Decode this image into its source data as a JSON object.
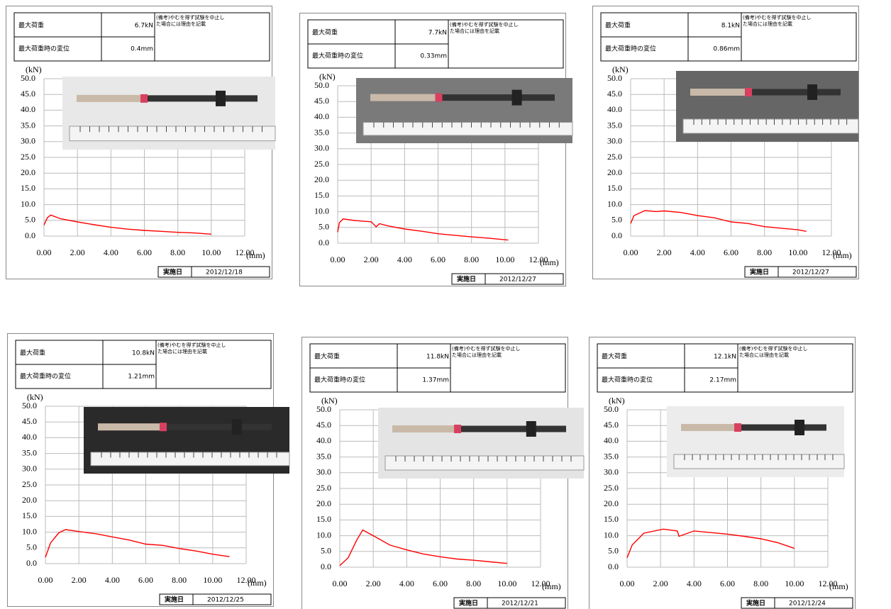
{
  "chart_data": [
    {
      "type": "line",
      "y_label": "(kN)",
      "x_label": "(mm)",
      "table": {
        "max_load_label": "最大荷重",
        "max_load": "6.7kN",
        "disp_label": "最大荷重時の変位",
        "disp": "0.4mm",
        "remark": [
          "(備考)やむを得ず試験を中止し",
          "た場合には理由を記載"
        ]
      },
      "date_label": "実施日",
      "date": "2012/12/18",
      "xlim": [
        0,
        12
      ],
      "ylim": [
        0,
        50
      ],
      "grid": true,
      "xticks": [
        {
          "value": 0,
          "label": "0.00"
        },
        {
          "value": 2,
          "label": "2.00"
        },
        {
          "value": 4,
          "label": "4.00"
        },
        {
          "value": 6,
          "label": "6.00"
        },
        {
          "value": 8,
          "label": "8.00"
        },
        {
          "value": 10,
          "label": "10.00"
        },
        {
          "value": 12,
          "label": "12.00"
        }
      ],
      "yticks": [
        {
          "value": 0,
          "label": "0.0"
        },
        {
          "value": 5,
          "label": "5.0"
        },
        {
          "value": 10,
          "label": "10.0"
        },
        {
          "value": 15,
          "label": "15.0"
        },
        {
          "value": 20,
          "label": "20.0"
        },
        {
          "value": 25,
          "label": "25.0"
        },
        {
          "value": 30,
          "label": "30.0"
        },
        {
          "value": 35,
          "label": "35.0"
        },
        {
          "value": 40,
          "label": "40.0"
        },
        {
          "value": 45,
          "label": "45.0"
        },
        {
          "value": 50,
          "label": "50.0"
        }
      ],
      "series": [
        {
          "color": "#ff0000",
          "x": [
            0,
            0.2,
            0.4,
            1,
            2,
            3,
            4,
            5,
            6,
            7,
            8,
            9,
            10
          ],
          "values": [
            3.5,
            5.8,
            6.7,
            5.5,
            4.5,
            3.6,
            2.8,
            2.2,
            1.8,
            1.5,
            1.2,
            1.0,
            0.6
          ]
        }
      ]
    },
    {
      "type": "line",
      "y_label": "(kN)",
      "x_label": "(mm)",
      "table": {
        "max_load_label": "最大荷重",
        "max_load": "7.7kN",
        "disp_label": "最大荷重時の変位",
        "disp": "0.33mm",
        "remark": [
          "(備考)やむを得ず試験を中止し",
          "た場合には理由を記載"
        ]
      },
      "date_label": "実施日",
      "date": "2012/12/27",
      "xlim": [
        0,
        12
      ],
      "ylim": [
        0,
        50
      ],
      "grid": true,
      "xticks": [
        {
          "value": 0,
          "label": "0.00"
        },
        {
          "value": 2,
          "label": "2.00"
        },
        {
          "value": 4,
          "label": "4.00"
        },
        {
          "value": 6,
          "label": "6.00"
        },
        {
          "value": 8,
          "label": "8.00"
        },
        {
          "value": 10,
          "label": "10.00"
        },
        {
          "value": 12,
          "label": "12.00"
        }
      ],
      "yticks": [
        {
          "value": 0,
          "label": "0.0"
        },
        {
          "value": 5,
          "label": "5.0"
        },
        {
          "value": 10,
          "label": "10.0"
        },
        {
          "value": 15,
          "label": "15.0"
        },
        {
          "value": 20,
          "label": "20.0"
        },
        {
          "value": 25,
          "label": "25.0"
        },
        {
          "value": 30,
          "label": "30.0"
        },
        {
          "value": 35,
          "label": "35.0"
        },
        {
          "value": 40,
          "label": "40.0"
        },
        {
          "value": 45,
          "label": "45.0"
        },
        {
          "value": 50,
          "label": "50.0"
        }
      ],
      "series": [
        {
          "color": "#ff0000",
          "x": [
            0,
            0.1,
            0.33,
            1,
            2,
            2.3,
            2.5,
            3,
            4,
            5,
            6,
            7,
            8,
            9,
            10.2
          ],
          "values": [
            3.5,
            6.5,
            7.7,
            7.2,
            6.8,
            5.2,
            6.2,
            5.5,
            4.5,
            3.8,
            3.0,
            2.5,
            2.0,
            1.6,
            1.0
          ]
        }
      ]
    },
    {
      "type": "line",
      "y_label": "(kN)",
      "x_label": "(mm)",
      "table": {
        "max_load_label": "最大荷重",
        "max_load": "8.1kN",
        "disp_label": "最大荷重時の変位",
        "disp": "0.86mm",
        "remark": [
          "(備考)やむを得ず試験を中止し",
          "た場合には理由を記載"
        ]
      },
      "date_label": "実施日",
      "date": "2012/12/27",
      "xlim": [
        0,
        12
      ],
      "ylim": [
        0,
        50
      ],
      "grid": true,
      "xticks": [
        {
          "value": 0,
          "label": "0.00"
        },
        {
          "value": 2,
          "label": "2.00"
        },
        {
          "value": 4,
          "label": "4.00"
        },
        {
          "value": 6,
          "label": "6.00"
        },
        {
          "value": 8,
          "label": "8.00"
        },
        {
          "value": 10,
          "label": "10.00"
        },
        {
          "value": 12,
          "label": "12.00"
        }
      ],
      "yticks": [
        {
          "value": 0,
          "label": "0.0"
        },
        {
          "value": 5,
          "label": "5.0"
        },
        {
          "value": 10,
          "label": "10.0"
        },
        {
          "value": 15,
          "label": "15.0"
        },
        {
          "value": 20,
          "label": "20.0"
        },
        {
          "value": 25,
          "label": "25.0"
        },
        {
          "value": 30,
          "label": "30.0"
        },
        {
          "value": 35,
          "label": "35.0"
        },
        {
          "value": 40,
          "label": "40.0"
        },
        {
          "value": 45,
          "label": "45.0"
        },
        {
          "value": 50,
          "label": "50.0"
        }
      ],
      "series": [
        {
          "color": "#ff0000",
          "x": [
            0,
            0.2,
            0.86,
            1.5,
            2,
            3,
            4,
            5,
            6,
            7,
            8,
            9,
            10,
            10.5
          ],
          "values": [
            4,
            6.5,
            8.1,
            7.8,
            8,
            7.5,
            6.5,
            5.8,
            4.5,
            4,
            3,
            2.5,
            2,
            1.5
          ]
        }
      ]
    },
    {
      "type": "line",
      "y_label": "(kN)",
      "x_label": "(mm)",
      "table": {
        "max_load_label": "最大荷重",
        "max_load": "10.8kN",
        "disp_label": "最大荷重時の変位",
        "disp": "1.21mm",
        "remark": [
          "(備考)やむを得ず試験を中止し",
          "た場合には理由を記載"
        ]
      },
      "date_label": "実施日",
      "date": "2012/12/25",
      "xlim": [
        0,
        12
      ],
      "ylim": [
        0,
        50
      ],
      "grid": true,
      "xticks": [
        {
          "value": 0,
          "label": "0.00"
        },
        {
          "value": 2,
          "label": "2.00"
        },
        {
          "value": 4,
          "label": "4.00"
        },
        {
          "value": 6,
          "label": "6.00"
        },
        {
          "value": 8,
          "label": "8.00"
        },
        {
          "value": 10,
          "label": "10.00"
        },
        {
          "value": 12,
          "label": "12.00"
        }
      ],
      "yticks": [
        {
          "value": 0,
          "label": "0.0"
        },
        {
          "value": 5,
          "label": "5.0"
        },
        {
          "value": 10,
          "label": "10.0"
        },
        {
          "value": 15,
          "label": "15.0"
        },
        {
          "value": 20,
          "label": "20.0"
        },
        {
          "value": 25,
          "label": "25.0"
        },
        {
          "value": 30,
          "label": "30.0"
        },
        {
          "value": 35,
          "label": "35.0"
        },
        {
          "value": 40,
          "label": "40.0"
        },
        {
          "value": 45,
          "label": "45.0"
        },
        {
          "value": 50,
          "label": "50.0"
        }
      ],
      "series": [
        {
          "color": "#ff0000",
          "x": [
            0,
            0.3,
            0.8,
            1.21,
            2,
            3,
            4,
            5,
            6,
            7,
            8,
            9,
            10,
            11
          ],
          "values": [
            2,
            6.5,
            9.8,
            10.8,
            10.2,
            9.5,
            8.5,
            7.5,
            6.2,
            5.8,
            4.8,
            4,
            3,
            2.2
          ]
        }
      ]
    },
    {
      "type": "line",
      "y_label": "(kN)",
      "x_label": "(mm)",
      "table": {
        "max_load_label": "最大荷重",
        "max_load": "11.8kN",
        "disp_label": "最大荷重時の変位",
        "disp": "1.37mm",
        "remark": [
          "(備考)やむを得ず試験を中止し",
          "た場合には理由を記載"
        ]
      },
      "date_label": "実施日",
      "date": "2012/12/21",
      "xlim": [
        0,
        12
      ],
      "ylim": [
        0,
        50
      ],
      "grid": true,
      "xticks": [
        {
          "value": 0,
          "label": "0.00"
        },
        {
          "value": 2,
          "label": "2.00"
        },
        {
          "value": 4,
          "label": "4.00"
        },
        {
          "value": 6,
          "label": "6.00"
        },
        {
          "value": 8,
          "label": "8.00"
        },
        {
          "value": 10,
          "label": "10.00"
        },
        {
          "value": 12,
          "label": "12.00"
        }
      ],
      "yticks": [
        {
          "value": 0,
          "label": "0.0"
        },
        {
          "value": 5,
          "label": "5.0"
        },
        {
          "value": 10,
          "label": "10.0"
        },
        {
          "value": 15,
          "label": "15.0"
        },
        {
          "value": 20,
          "label": "20.0"
        },
        {
          "value": 25,
          "label": "25.0"
        },
        {
          "value": 30,
          "label": "30.0"
        },
        {
          "value": 35,
          "label": "35.0"
        },
        {
          "value": 40,
          "label": "40.0"
        },
        {
          "value": 45,
          "label": "45.0"
        },
        {
          "value": 50,
          "label": "50.0"
        }
      ],
      "series": [
        {
          "color": "#ff0000",
          "x": [
            0,
            0.5,
            1,
            1.37,
            2,
            3,
            4,
            5,
            6,
            7,
            8,
            9,
            10
          ],
          "values": [
            0.5,
            3,
            8.5,
            11.8,
            10,
            7,
            5.5,
            4.2,
            3.3,
            2.6,
            2.2,
            1.7,
            1.2
          ]
        }
      ]
    },
    {
      "type": "line",
      "y_label": "(kN)",
      "x_label": "(mm)",
      "table": {
        "max_load_label": "最大荷重",
        "max_load": "12.1kN",
        "disp_label": "最大荷重時の変位",
        "disp": "2.17mm",
        "remark": [
          "(備考)やむを得ず試験を中止し",
          "た場合には理由を記載"
        ]
      },
      "date_label": "実施日",
      "date": "2012/12/24",
      "xlim": [
        0,
        12
      ],
      "ylim": [
        0,
        50
      ],
      "grid": true,
      "xticks": [
        {
          "value": 0,
          "label": "0.00"
        },
        {
          "value": 2,
          "label": "2.00"
        },
        {
          "value": 4,
          "label": "4.00"
        },
        {
          "value": 6,
          "label": "6.00"
        },
        {
          "value": 8,
          "label": "8.00"
        },
        {
          "value": 10,
          "label": "10.00"
        },
        {
          "value": 12,
          "label": "12.00"
        }
      ],
      "yticks": [
        {
          "value": 0,
          "label": "0.0"
        },
        {
          "value": 5,
          "label": "5.0"
        },
        {
          "value": 10,
          "label": "10.0"
        },
        {
          "value": 15,
          "label": "15.0"
        },
        {
          "value": 20,
          "label": "20.0"
        },
        {
          "value": 25,
          "label": "25.0"
        },
        {
          "value": 30,
          "label": "30.0"
        },
        {
          "value": 35,
          "label": "35.0"
        },
        {
          "value": 40,
          "label": "40.0"
        },
        {
          "value": 45,
          "label": "45.0"
        },
        {
          "value": 50,
          "label": "50.0"
        }
      ],
      "series": [
        {
          "color": "#ff0000",
          "x": [
            0,
            0.3,
            1,
            2.17,
            3,
            3.1,
            4,
            5,
            6,
            7,
            8,
            9,
            10
          ],
          "values": [
            3,
            7,
            10.8,
            12.1,
            11.5,
            9.8,
            11.5,
            11,
            10.5,
            9.8,
            9,
            7.8,
            6
          ]
        }
      ]
    }
  ]
}
